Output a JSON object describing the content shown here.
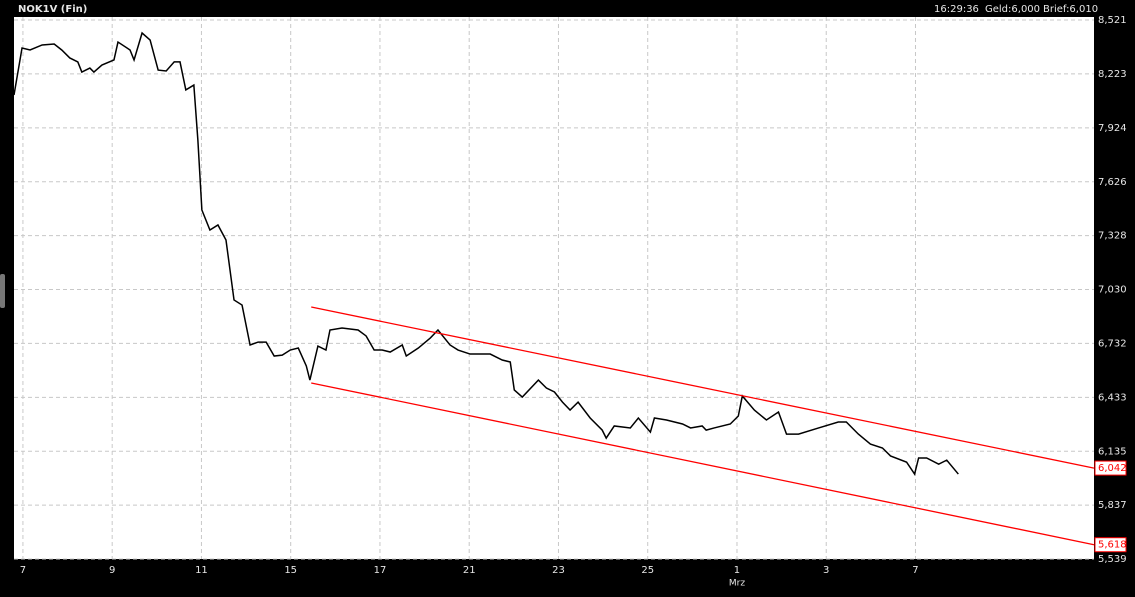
{
  "chart_data": {
    "type": "line",
    "title": "NOK1V (Fin)",
    "status": [
      "16:29:36",
      "Geld:6,000",
      "Brief:6,010"
    ],
    "x": [
      -0.2,
      -0.02,
      0.16,
      0.43,
      0.7,
      0.87,
      1.05,
      1.23,
      1.32,
      1.5,
      1.59,
      1.77,
      2.04,
      2.13,
      2.4,
      2.49,
      2.67,
      2.85,
      3.03,
      3.21,
      3.39,
      3.52,
      3.65,
      3.83,
      3.92,
      4.01,
      4.19,
      4.37,
      4.55,
      4.73,
      4.91,
      5.09,
      5.27,
      5.45,
      5.63,
      5.81,
      5.99,
      6.17,
      6.35,
      6.43,
      6.61,
      6.79,
      6.88,
      7.15,
      7.51,
      7.69,
      7.87,
      8.05,
      8.23,
      8.5,
      8.59,
      8.86,
      9.13,
      9.3,
      9.57,
      9.75,
      10.02,
      10.47,
      10.74,
      10.92,
      11.01,
      11.19,
      11.55,
      11.73,
      11.91,
      12.09,
      12.26,
      12.44,
      12.71,
      12.98,
      13.07,
      13.25,
      13.61,
      13.79,
      14.06,
      14.15,
      14.42,
      14.78,
      14.96,
      15.22,
      15.31,
      15.49,
      15.85,
      16.03,
      16.12,
      16.39,
      16.66,
      16.93,
      17.11,
      17.38,
      17.83,
      18.27,
      18.45,
      18.72,
      18.99,
      19.26,
      19.44,
      19.8,
      19.98,
      20.07,
      20.25,
      20.52,
      20.7,
      20.96
    ],
    "series": [
      {
        "color": "#000000",
        "values": [
          8.106,
          8.366,
          8.355,
          8.383,
          8.388,
          8.355,
          8.311,
          8.289,
          8.233,
          8.255,
          8.233,
          8.272,
          8.3,
          8.399,
          8.355,
          8.3,
          8.449,
          8.41,
          8.244,
          8.239,
          8.289,
          8.289,
          8.134,
          8.161,
          7.857,
          7.47,
          7.359,
          7.387,
          7.304,
          6.972,
          6.944,
          6.723,
          6.739,
          6.739,
          6.662,
          6.667,
          6.695,
          6.706,
          6.607,
          6.529,
          6.717,
          6.695,
          6.806,
          6.817,
          6.806,
          6.773,
          6.695,
          6.695,
          6.684,
          6.723,
          6.662,
          6.706,
          6.762,
          6.806,
          6.723,
          6.695,
          6.673,
          6.673,
          6.64,
          6.629,
          6.474,
          6.435,
          6.529,
          6.485,
          6.463,
          6.407,
          6.363,
          6.407,
          6.319,
          6.252,
          6.208,
          6.275,
          6.264,
          6.319,
          6.241,
          6.319,
          6.308,
          6.286,
          6.264,
          6.275,
          6.252,
          6.264,
          6.286,
          6.33,
          6.441,
          6.363,
          6.308,
          6.352,
          6.23,
          6.23,
          6.264,
          6.297,
          6.297,
          6.23,
          6.175,
          6.153,
          6.109,
          6.075,
          6.009,
          6.098,
          6.098,
          6.064,
          6.086,
          6.009
        ]
      }
    ],
    "trend_lines": [
      {
        "color": "#ff0000",
        "x": [
          6.46,
          24.0
        ],
        "values": [
          6.933,
          6.042
        ],
        "end_label": "6,042"
      },
      {
        "color": "#ff0000",
        "x": [
          6.46,
          24.0
        ],
        "values": [
          6.513,
          5.618
        ],
        "end_label": "5,618"
      }
    ],
    "xlim": [
      -0.2,
      24.0
    ],
    "xticks": [
      {
        "value": 0,
        "label": "7"
      },
      {
        "value": 2,
        "label": "9"
      },
      {
        "value": 4,
        "label": "11"
      },
      {
        "value": 6,
        "label": "15"
      },
      {
        "value": 8,
        "label": "17"
      },
      {
        "value": 10,
        "label": "21"
      },
      {
        "value": 12,
        "label": "23"
      },
      {
        "value": 14,
        "label": "25"
      },
      {
        "value": 16,
        "label": "1"
      },
      {
        "value": 18,
        "label": "3"
      },
      {
        "value": 20,
        "label": "7"
      }
    ],
    "month_labels": [
      {
        "value": 16,
        "label": "Mrz"
      }
    ],
    "ylim": [
      5.539,
      8.521
    ],
    "yticks": [
      {
        "value": 5.539,
        "label": "5,539"
      },
      {
        "value": 5.837,
        "label": "5,837"
      },
      {
        "value": 6.135,
        "label": "6,135"
      },
      {
        "value": 6.433,
        "label": "6,433"
      },
      {
        "value": 6.732,
        "label": "6,732"
      },
      {
        "value": 7.03,
        "label": "7,030"
      },
      {
        "value": 7.328,
        "label": "7,328"
      },
      {
        "value": 7.626,
        "label": "7,626"
      },
      {
        "value": 7.924,
        "label": "7,924"
      },
      {
        "value": 8.223,
        "label": "8,223"
      },
      {
        "value": 8.521,
        "label": "8,521"
      }
    ],
    "grid": true
  }
}
